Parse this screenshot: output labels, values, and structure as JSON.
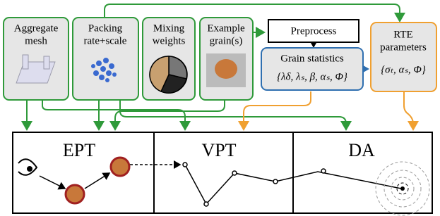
{
  "inputs": [
    {
      "lines": [
        "Aggregate",
        "mesh"
      ]
    },
    {
      "lines": [
        "Packing",
        "rate+scale"
      ]
    },
    {
      "lines": [
        "Mixing",
        "weights"
      ]
    },
    {
      "lines": [
        "Example",
        "grain(s)"
      ]
    }
  ],
  "preprocess": "Preprocess",
  "grain_statistics": {
    "title": "Grain statistics",
    "params": "{λδ, λₛ, β, αₛ, Φ}"
  },
  "rte_parameters": {
    "lines": [
      "RTE",
      "parameters"
    ],
    "params": "{σₜ, αₛ, Φ}"
  },
  "panels": [
    "EPT",
    "VPT",
    "DA"
  ]
}
